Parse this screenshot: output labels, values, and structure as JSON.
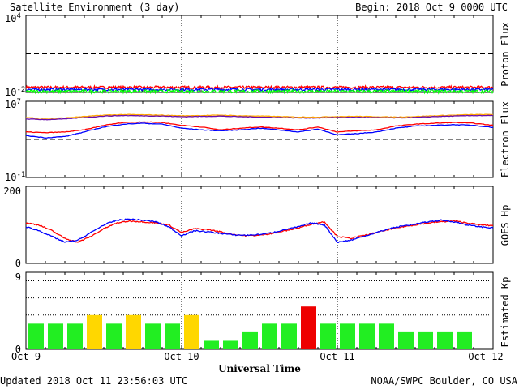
{
  "header": {
    "title": "Satellite Environment (3 day)",
    "begin": "Begin:  2018 Oct 9 0000 UTC"
  },
  "footer": {
    "updated": "Updated 2018 Oct 11 23:56:03 UTC",
    "credit": "NOAA/SWPC Boulder, CO USA"
  },
  "x_axis": {
    "label": "Universal Time",
    "ticks": [
      "Oct 9",
      "Oct 10",
      "Oct 11",
      "Oct 12"
    ]
  },
  "colors": {
    "red": "#ff0000",
    "blue": "#0000ff",
    "green": "#00ff00",
    "orange": "#ffa500",
    "purple": "#6a0dad",
    "kp_green": "#22ee22",
    "kp_yellow": "#ffd700",
    "kp_red": "#ee0000"
  },
  "chart_data": [
    {
      "type": "line",
      "ylabel": "Proton Flux",
      "yscale": "log",
      "ylim": [
        0.01,
        10000
      ],
      "yticks": [
        {
          "base": "10",
          "exp": "-2"
        },
        {
          "base": "10",
          "exp": "4"
        }
      ],
      "threshold": 10,
      "xlim": [
        0,
        72
      ],
      "series": [
        {
          "color": "red",
          "level": 0.025,
          "noise": 0.1
        },
        {
          "color": "blue",
          "level": 0.017,
          "noise": 0.1
        },
        {
          "color": "green",
          "level": 0.012,
          "noise": 0.12
        }
      ]
    },
    {
      "type": "line",
      "ylabel": "Electron Flux",
      "yscale": "log",
      "ylim": [
        0.1,
        10000000
      ],
      "yticks": [
        {
          "base": "10",
          "exp": "-1"
        },
        {
          "base": "10",
          "exp": "7"
        }
      ],
      "threshold": 1000,
      "xlim": [
        0,
        72
      ],
      "series": [
        {
          "color": "orange",
          "x": [
            0,
            3,
            6,
            9,
            12,
            15,
            18,
            21,
            24,
            27,
            30,
            33,
            36,
            39,
            42,
            45,
            48,
            51,
            54,
            57,
            60,
            63,
            66,
            69,
            72
          ],
          "y": [
            200000.0,
            160000.0,
            180000.0,
            250000.0,
            350000.0,
            400000.0,
            380000.0,
            350000.0,
            300000.0,
            320000.0,
            350000.0,
            300000.0,
            280000.0,
            250000.0,
            220000.0,
            220000.0,
            250000.0,
            260000.0,
            240000.0,
            220000.0,
            250000.0,
            300000.0,
            350000.0,
            400000.0,
            400000.0
          ]
        },
        {
          "color": "purple",
          "x": [
            0,
            3,
            6,
            9,
            12,
            15,
            18,
            21,
            24,
            27,
            30,
            33,
            36,
            39,
            42,
            45,
            48,
            51,
            54,
            57,
            60,
            63,
            66,
            69,
            72
          ],
          "y": [
            140000.0,
            120000.0,
            140000.0,
            200000.0,
            280000.0,
            320000.0,
            300000.0,
            280000.0,
            240000.0,
            260000.0,
            280000.0,
            240000.0,
            220000.0,
            200000.0,
            180000.0,
            180000.0,
            200000.0,
            210000.0,
            190000.0,
            180000.0,
            200000.0,
            250000.0,
            280000.0,
            320000.0,
            320000.0
          ]
        },
        {
          "color": "red",
          "x": [
            0,
            3,
            6,
            9,
            12,
            15,
            18,
            21,
            24,
            27,
            30,
            33,
            36,
            39,
            42,
            45,
            48,
            51,
            54,
            57,
            60,
            63,
            66,
            69,
            72
          ],
          "y": [
            6000.0,
            5000.0,
            6000.0,
            10000.0,
            30000.0,
            60000.0,
            70000.0,
            60000.0,
            30000.0,
            20000.0,
            10000.0,
            15000.0,
            20000.0,
            15000.0,
            10000.0,
            20000.0,
            6000.0,
            8000.0,
            10000.0,
            25000.0,
            40000.0,
            50000.0,
            60000.0,
            50000.0,
            30000.0
          ]
        },
        {
          "color": "blue",
          "x": [
            0,
            3,
            6,
            9,
            12,
            15,
            18,
            21,
            24,
            27,
            30,
            33,
            36,
            39,
            42,
            45,
            48,
            51,
            54,
            57,
            60,
            63,
            66,
            69,
            72
          ],
          "y": [
            2500.0,
            1500.0,
            2000.0,
            6000.0,
            20000.0,
            40000.0,
            50000.0,
            40000.0,
            15000.0,
            10000.0,
            8000.0,
            10000.0,
            15000.0,
            10000.0,
            6000.0,
            12000.0,
            3000.0,
            4000.0,
            6000.0,
            15000.0,
            25000.0,
            30000.0,
            35000.0,
            30000.0,
            18000.0
          ]
        }
      ]
    },
    {
      "type": "line",
      "ylabel": "GOES Hp",
      "yscale": "linear",
      "ylim": [
        0,
        200
      ],
      "yticks": [
        "0",
        "200"
      ],
      "xlim": [
        0,
        72
      ],
      "series": [
        {
          "color": "red",
          "x": [
            0,
            2,
            4,
            6,
            8,
            10,
            12,
            14,
            16,
            18,
            20,
            22,
            24,
            26,
            28,
            30,
            32,
            34,
            36,
            38,
            40,
            42,
            44,
            46,
            48,
            50,
            52,
            54,
            56,
            58,
            60,
            62,
            64,
            66,
            68,
            70,
            72
          ],
          "y": [
            105,
            100,
            85,
            65,
            55,
            70,
            90,
            105,
            110,
            108,
            105,
            100,
            80,
            90,
            88,
            82,
            75,
            72,
            73,
            78,
            85,
            92,
            102,
            108,
            70,
            65,
            72,
            80,
            88,
            95,
            100,
            105,
            108,
            110,
            105,
            100,
            98
          ]
        },
        {
          "color": "blue",
          "x": [
            0,
            2,
            4,
            6,
            8,
            10,
            12,
            14,
            16,
            18,
            20,
            22,
            24,
            26,
            28,
            30,
            32,
            34,
            36,
            38,
            40,
            42,
            44,
            46,
            48,
            50,
            52,
            54,
            56,
            58,
            60,
            62,
            64,
            66,
            68,
            70,
            72
          ],
          "y": [
            95,
            85,
            70,
            55,
            60,
            80,
            100,
            112,
            115,
            112,
            108,
            95,
            72,
            85,
            82,
            78,
            74,
            73,
            75,
            80,
            88,
            95,
            105,
            100,
            55,
            60,
            70,
            80,
            90,
            97,
            102,
            108,
            112,
            108,
            100,
            95,
            92
          ]
        }
      ]
    },
    {
      "type": "bar",
      "ylabel": "Estimated Kp",
      "ylim": [
        0,
        9
      ],
      "yticks": [
        "0",
        "9"
      ],
      "gridlines": [
        4,
        6,
        8
      ],
      "interval_hours": 3,
      "values": [
        3,
        3,
        3,
        4,
        3,
        4,
        3,
        3,
        4,
        1,
        1,
        2,
        3,
        3,
        5,
        3,
        3,
        3,
        3,
        2,
        2,
        2,
        2
      ],
      "colors": [
        "kp_green",
        "kp_green",
        "kp_green",
        "kp_yellow",
        "kp_green",
        "kp_yellow",
        "kp_green",
        "kp_green",
        "kp_yellow",
        "kp_green",
        "kp_green",
        "kp_green",
        "kp_green",
        "kp_green",
        "kp_red",
        "kp_green",
        "kp_green",
        "kp_green",
        "kp_green",
        "kp_green",
        "kp_green",
        "kp_green",
        "kp_green"
      ]
    }
  ]
}
